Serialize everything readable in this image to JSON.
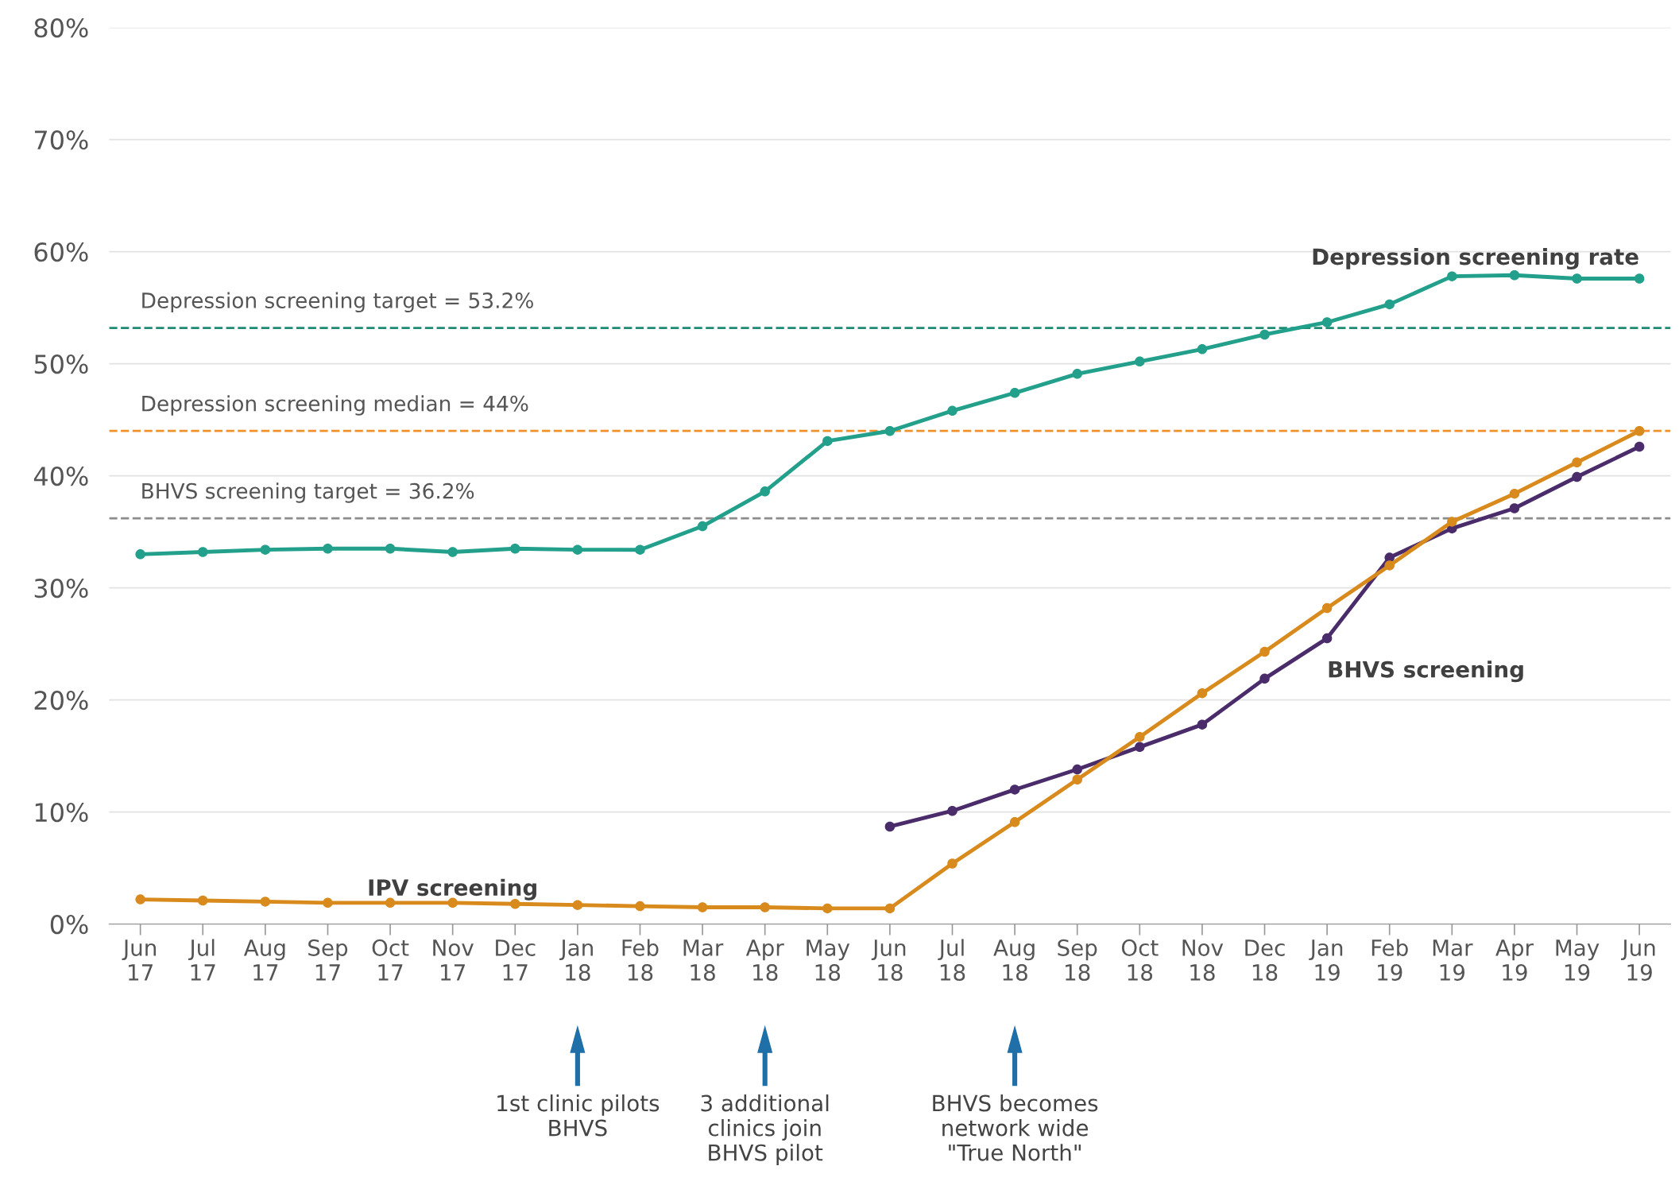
{
  "chart_data": {
    "type": "line",
    "categories": [
      "Jun\n17",
      "Jul\n17",
      "Aug\n17",
      "Sep\n17",
      "Oct\n17",
      "Nov\n17",
      "Dec\n17",
      "Jan\n18",
      "Feb\n18",
      "Mar\n18",
      "Apr\n18",
      "May\n18",
      "Jun\n18",
      "Jul\n18",
      "Aug\n18",
      "Sep\n18",
      "Oct\n18",
      "Nov\n18",
      "Dec\n18",
      "Jan\n19",
      "Feb\n19",
      "Mar\n19",
      "Apr\n19",
      "May\n19",
      "Jun\n19"
    ],
    "series": [
      {
        "name": "Depression screening rate",
        "color": "#22a08b",
        "values": [
          33.0,
          33.2,
          33.4,
          33.5,
          33.5,
          33.2,
          33.5,
          33.4,
          33.4,
          35.5,
          38.6,
          43.1,
          44.0,
          45.8,
          47.4,
          49.1,
          50.2,
          51.3,
          52.6,
          53.7,
          55.3,
          57.8,
          57.9,
          57.6,
          57.6
        ]
      },
      {
        "name": "BHVS screening",
        "color": "#4b2c6b",
        "values": [
          null,
          null,
          null,
          null,
          null,
          null,
          null,
          null,
          null,
          null,
          null,
          null,
          8.7,
          10.1,
          12.0,
          13.8,
          15.8,
          17.8,
          21.9,
          25.5,
          32.7,
          35.3,
          37.1,
          39.9,
          42.6
        ]
      },
      {
        "name": "IPV screening",
        "color": "#d98a1c",
        "values": [
          2.2,
          2.1,
          2.0,
          1.9,
          1.9,
          1.9,
          1.8,
          1.7,
          1.6,
          1.5,
          1.5,
          1.4,
          1.4,
          5.4,
          9.1,
          12.9,
          16.7,
          20.6,
          24.3,
          28.2,
          32.0,
          35.9,
          38.4,
          41.2,
          44.0
        ]
      }
    ],
    "ylim": [
      0,
      80
    ],
    "yticks": [
      {
        "value": 0,
        "label": "0%"
      },
      {
        "value": 10,
        "label": "10%"
      },
      {
        "value": 20,
        "label": "20%"
      },
      {
        "value": 30,
        "label": "30%"
      },
      {
        "value": 40,
        "label": "40%"
      },
      {
        "value": 50,
        "label": "50%"
      },
      {
        "value": 60,
        "label": "60%"
      },
      {
        "value": 70,
        "label": "70%"
      },
      {
        "value": 80,
        "label": "80%"
      }
    ],
    "grid": "y",
    "marker": "circle",
    "line_style": "solid",
    "ref_lines": [
      {
        "axis": "y",
        "value": 53.2,
        "label": "Depression screening target = 53.2%",
        "color": "#1f8a73",
        "line_style": "dashed"
      },
      {
        "axis": "y",
        "value": 44,
        "label": "Depression screening median = 44%",
        "color": "#f0922c",
        "line_style": "dashed"
      },
      {
        "axis": "y",
        "value": 36.2,
        "label": "BHVS screening target = 36.2%",
        "color": "#8c8c8c",
        "line_style": "dashed"
      }
    ],
    "annotations": [
      "1st clinic pilots\nBHVS",
      "3 additional\nclinics join\nBHVS pilot",
      "BHVS becomes\nnetwork wide\n\"True North\""
    ]
  }
}
